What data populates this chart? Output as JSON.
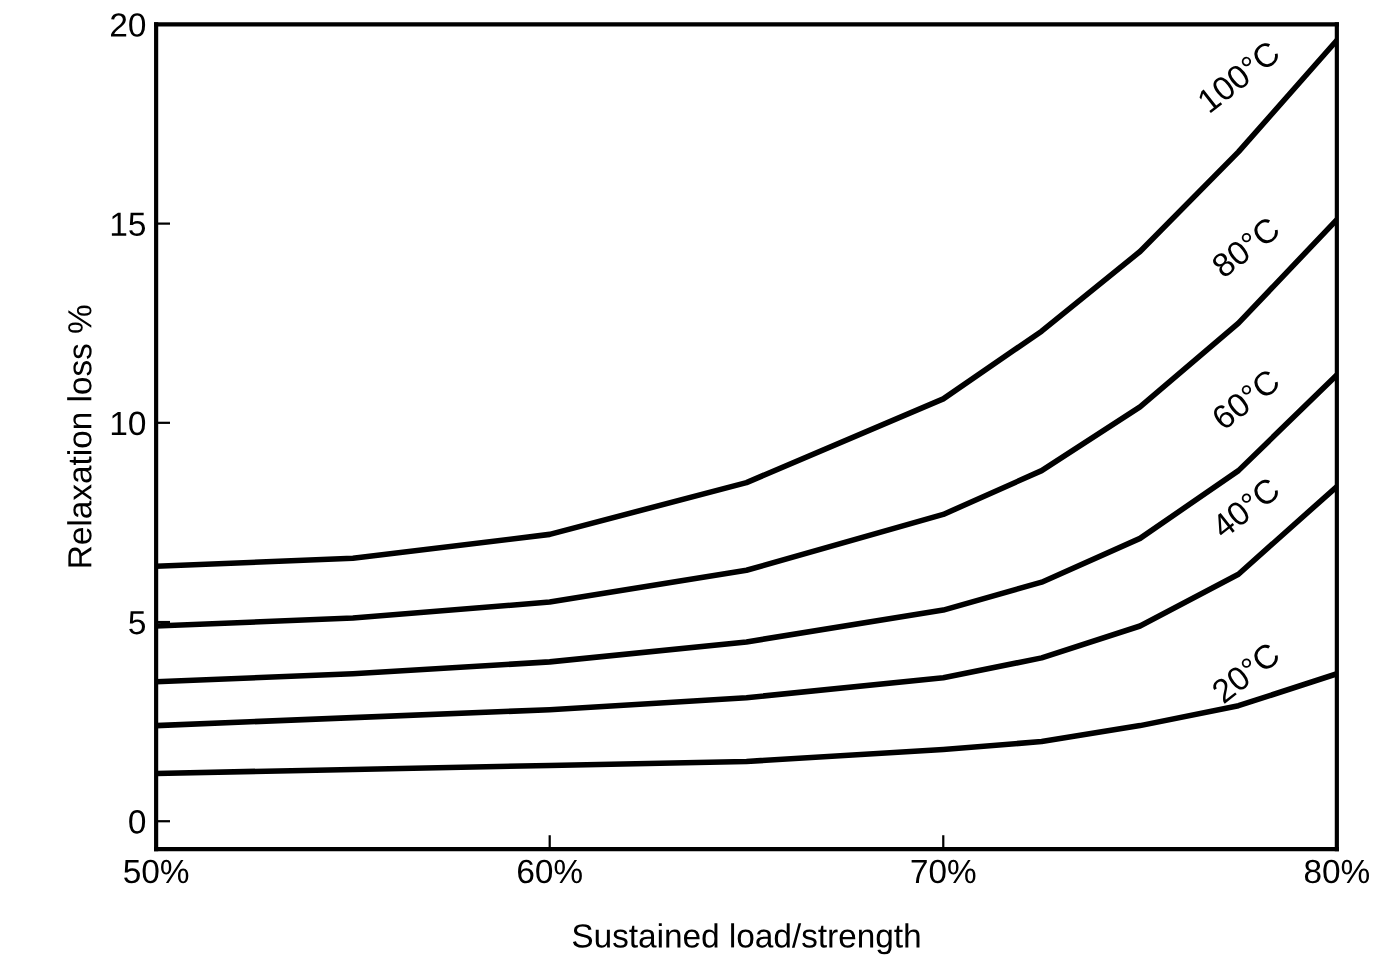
{
  "chart_data": {
    "type": "line",
    "xlabel": "Sustained load/strength",
    "ylabel": "Relaxation loss %",
    "x": [
      50,
      55,
      60,
      65,
      70,
      72.5,
      75,
      77.5,
      80
    ],
    "xlim": [
      50,
      80
    ],
    "xticks": [
      {
        "value": 50,
        "label": "50%"
      },
      {
        "value": 60,
        "label": "60%"
      },
      {
        "value": 70,
        "label": "70%"
      },
      {
        "value": 80,
        "label": "80%"
      }
    ],
    "ylim": [
      -0.7,
      20
    ],
    "yticks": [
      0,
      5,
      10,
      15,
      20
    ],
    "grid": false,
    "marker": "none",
    "line_style": "solid",
    "series": [
      {
        "name": "100°C",
        "color": "#000000",
        "values": [
          6.4,
          6.6,
          7.2,
          8.5,
          10.6,
          12.3,
          14.3,
          16.8,
          19.6
        ]
      },
      {
        "name": "80°C",
        "color": "#000000",
        "values": [
          4.9,
          5.1,
          5.5,
          6.3,
          7.7,
          8.8,
          10.4,
          12.5,
          15.1
        ]
      },
      {
        "name": "60°C",
        "color": "#000000",
        "values": [
          3.5,
          3.7,
          4.0,
          4.5,
          5.3,
          6.0,
          7.1,
          8.8,
          11.2
        ]
      },
      {
        "name": "40°C",
        "color": "#000000",
        "values": [
          2.4,
          2.6,
          2.8,
          3.1,
          3.6,
          4.1,
          4.9,
          6.2,
          8.4
        ]
      },
      {
        "name": "20°C",
        "color": "#000000",
        "values": [
          1.2,
          1.3,
          1.4,
          1.5,
          1.8,
          2.0,
          2.4,
          2.9,
          3.7
        ]
      }
    ]
  }
}
